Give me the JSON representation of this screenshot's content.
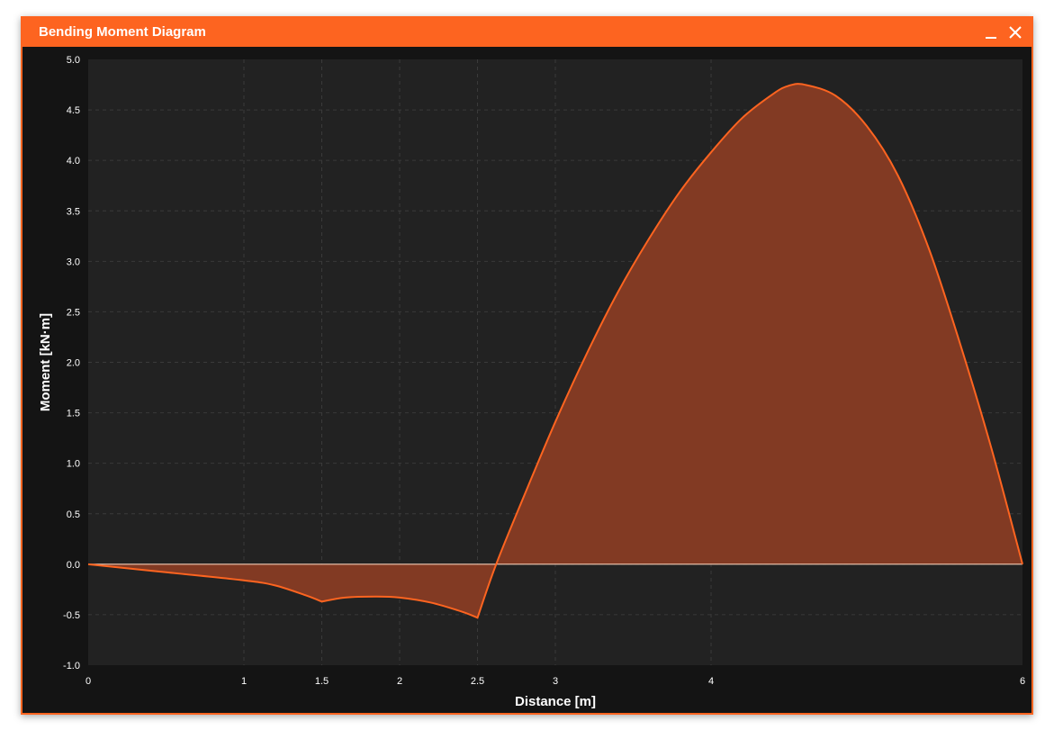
{
  "window": {
    "title": "Bending Moment Diagram",
    "minimize_icon": "minimize-icon",
    "close_icon": "close-icon"
  },
  "colors": {
    "accent": "#fd6420",
    "plot_background": "#222222",
    "window_background": "#141414",
    "fill": "#823a23",
    "zero_line": "#f4cbb4",
    "grid": "#3a3a3a",
    "text": "#ffffff"
  },
  "chart_data": {
    "type": "area",
    "title": "",
    "xlabel": "Distance [m]",
    "ylabel": "Moment [kN·m]",
    "xlim": [
      0,
      6
    ],
    "ylim": [
      -1.0,
      5.0
    ],
    "x_ticks": [
      0,
      1,
      1.5,
      2,
      2.5,
      3,
      4,
      6
    ],
    "x_tick_labels": [
      "0",
      "1",
      "1.5",
      "2",
      "2.5",
      "3",
      "4",
      "6"
    ],
    "y_ticks": [
      -1.0,
      -0.5,
      0.0,
      0.5,
      1.0,
      1.5,
      2.0,
      2.5,
      3.0,
      3.5,
      4.0,
      4.5,
      5.0
    ],
    "y_tick_labels": [
      "-1.0",
      "-0.5",
      "0.0",
      "0.5",
      "1.0",
      "1.5",
      "2.0",
      "2.5",
      "3.0",
      "3.5",
      "4.0",
      "4.5",
      "5.0"
    ],
    "grid": true,
    "legend": "none",
    "series": [
      {
        "x": [
          0,
          0.5,
          1.0,
          1.2,
          1.4,
          1.5,
          1.65,
          1.85,
          2.0,
          2.2,
          2.4,
          2.5,
          2.62,
          2.8,
          3.0,
          3.2,
          3.4,
          3.6,
          3.8,
          4.0,
          4.2,
          4.4,
          4.5,
          4.6,
          4.8,
          5.0,
          5.2,
          5.4,
          5.6,
          5.8,
          6.0
        ],
        "y": [
          0,
          -0.08,
          -0.16,
          -0.21,
          -0.31,
          -0.37,
          -0.33,
          -0.32,
          -0.33,
          -0.38,
          -0.47,
          -0.53,
          0.0,
          0.68,
          1.41,
          2.08,
          2.69,
          3.22,
          3.69,
          4.08,
          4.42,
          4.66,
          4.74,
          4.75,
          4.64,
          4.34,
          3.85,
          3.12,
          2.18,
          1.15,
          0.0
        ]
      }
    ]
  }
}
